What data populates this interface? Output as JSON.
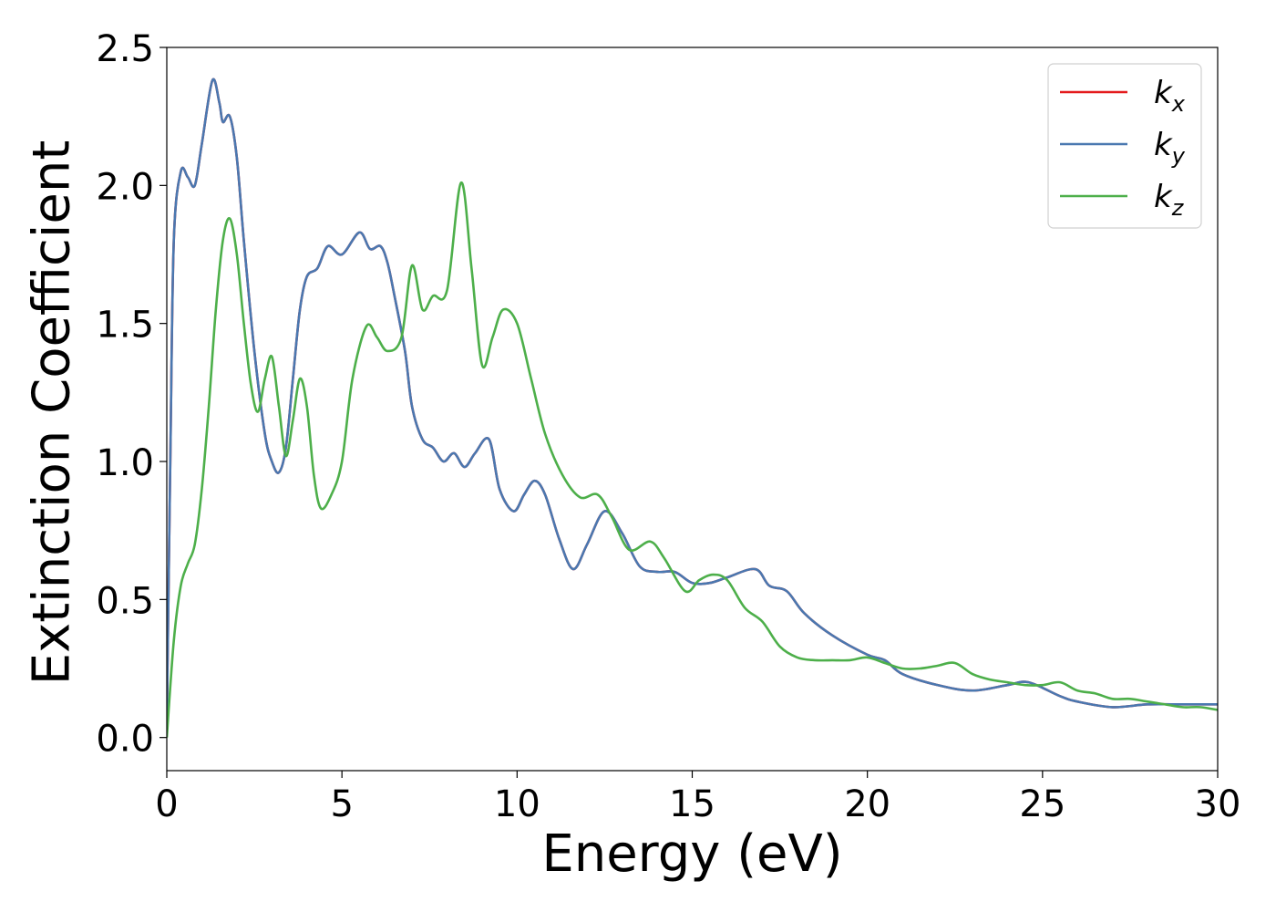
{
  "chart_data": {
    "type": "line",
    "xlabel": "Energy (eV)",
    "ylabel": "Extinction Coefficient",
    "xlim": [
      0,
      30
    ],
    "ylim": [
      -0.12,
      2.5
    ],
    "x_ticks": [
      0,
      5,
      10,
      15,
      20,
      25,
      30
    ],
    "x_tick_labels": [
      "0",
      "5",
      "10",
      "15",
      "20",
      "25",
      "30"
    ],
    "y_ticks": [
      0.0,
      0.5,
      1.0,
      1.5,
      2.0,
      2.5
    ],
    "y_tick_labels": [
      "0.0",
      "0.5",
      "1.0",
      "1.5",
      "2.0",
      "2.5"
    ],
    "grid": false,
    "legend_position": "top-right",
    "series": [
      {
        "name": "k_x",
        "legend_base": "k",
        "legend_sub": "x",
        "color": "#e41a1c",
        "points": [
          [
            0,
            0.05
          ],
          [
            0.1,
            1.0
          ],
          [
            0.2,
            1.8
          ],
          [
            0.4,
            2.05
          ],
          [
            0.6,
            2.03
          ],
          [
            0.8,
            2.0
          ],
          [
            1.0,
            2.15
          ],
          [
            1.3,
            2.38
          ],
          [
            1.5,
            2.3
          ],
          [
            1.6,
            2.23
          ],
          [
            1.8,
            2.25
          ],
          [
            2.0,
            2.1
          ],
          [
            2.2,
            1.8
          ],
          [
            2.5,
            1.4
          ],
          [
            2.8,
            1.1
          ],
          [
            3.0,
            1.0
          ],
          [
            3.2,
            0.96
          ],
          [
            3.4,
            1.05
          ],
          [
            3.6,
            1.3
          ],
          [
            3.8,
            1.55
          ],
          [
            4.0,
            1.67
          ],
          [
            4.3,
            1.7
          ],
          [
            4.6,
            1.78
          ],
          [
            5.0,
            1.75
          ],
          [
            5.5,
            1.83
          ],
          [
            5.8,
            1.77
          ],
          [
            6.1,
            1.78
          ],
          [
            6.3,
            1.72
          ],
          [
            6.5,
            1.6
          ],
          [
            6.8,
            1.4
          ],
          [
            7.0,
            1.2
          ],
          [
            7.3,
            1.08
          ],
          [
            7.6,
            1.05
          ],
          [
            7.9,
            1.0
          ],
          [
            8.2,
            1.03
          ],
          [
            8.5,
            0.98
          ],
          [
            8.8,
            1.03
          ],
          [
            9.2,
            1.08
          ],
          [
            9.5,
            0.9
          ],
          [
            9.9,
            0.82
          ],
          [
            10.2,
            0.88
          ],
          [
            10.5,
            0.93
          ],
          [
            10.8,
            0.88
          ],
          [
            11.2,
            0.72
          ],
          [
            11.6,
            0.61
          ],
          [
            12.0,
            0.7
          ],
          [
            12.5,
            0.82
          ],
          [
            13.0,
            0.74
          ],
          [
            13.5,
            0.62
          ],
          [
            14.0,
            0.6
          ],
          [
            14.5,
            0.6
          ],
          [
            15.0,
            0.56
          ],
          [
            15.5,
            0.56
          ],
          [
            16.0,
            0.58
          ],
          [
            16.8,
            0.61
          ],
          [
            17.2,
            0.55
          ],
          [
            17.7,
            0.53
          ],
          [
            18.2,
            0.45
          ],
          [
            19.0,
            0.37
          ],
          [
            20.0,
            0.3
          ],
          [
            20.5,
            0.28
          ],
          [
            21.0,
            0.23
          ],
          [
            22.0,
            0.19
          ],
          [
            23.0,
            0.17
          ],
          [
            24.0,
            0.19
          ],
          [
            24.6,
            0.2
          ],
          [
            25.5,
            0.15
          ],
          [
            26.0,
            0.13
          ],
          [
            27.0,
            0.11
          ],
          [
            28.0,
            0.12
          ],
          [
            29.0,
            0.12
          ],
          [
            30.0,
            0.12
          ]
        ]
      },
      {
        "name": "k_y",
        "legend_base": "k",
        "legend_sub": "y",
        "color": "#4a78b0",
        "points": [
          [
            0,
            0.05
          ],
          [
            0.1,
            1.0
          ],
          [
            0.2,
            1.8
          ],
          [
            0.4,
            2.05
          ],
          [
            0.6,
            2.03
          ],
          [
            0.8,
            2.0
          ],
          [
            1.0,
            2.15
          ],
          [
            1.3,
            2.38
          ],
          [
            1.5,
            2.3
          ],
          [
            1.6,
            2.23
          ],
          [
            1.8,
            2.25
          ],
          [
            2.0,
            2.1
          ],
          [
            2.2,
            1.8
          ],
          [
            2.5,
            1.4
          ],
          [
            2.8,
            1.1
          ],
          [
            3.0,
            1.0
          ],
          [
            3.2,
            0.96
          ],
          [
            3.4,
            1.05
          ],
          [
            3.6,
            1.3
          ],
          [
            3.8,
            1.55
          ],
          [
            4.0,
            1.67
          ],
          [
            4.3,
            1.7
          ],
          [
            4.6,
            1.78
          ],
          [
            5.0,
            1.75
          ],
          [
            5.5,
            1.83
          ],
          [
            5.8,
            1.77
          ],
          [
            6.1,
            1.78
          ],
          [
            6.3,
            1.72
          ],
          [
            6.5,
            1.6
          ],
          [
            6.8,
            1.4
          ],
          [
            7.0,
            1.2
          ],
          [
            7.3,
            1.08
          ],
          [
            7.6,
            1.05
          ],
          [
            7.9,
            1.0
          ],
          [
            8.2,
            1.03
          ],
          [
            8.5,
            0.98
          ],
          [
            8.8,
            1.03
          ],
          [
            9.2,
            1.08
          ],
          [
            9.5,
            0.9
          ],
          [
            9.9,
            0.82
          ],
          [
            10.2,
            0.88
          ],
          [
            10.5,
            0.93
          ],
          [
            10.8,
            0.88
          ],
          [
            11.2,
            0.72
          ],
          [
            11.6,
            0.61
          ],
          [
            12.0,
            0.7
          ],
          [
            12.5,
            0.82
          ],
          [
            13.0,
            0.74
          ],
          [
            13.5,
            0.62
          ],
          [
            14.0,
            0.6
          ],
          [
            14.5,
            0.6
          ],
          [
            15.0,
            0.56
          ],
          [
            15.5,
            0.56
          ],
          [
            16.0,
            0.58
          ],
          [
            16.8,
            0.61
          ],
          [
            17.2,
            0.55
          ],
          [
            17.7,
            0.53
          ],
          [
            18.2,
            0.45
          ],
          [
            19.0,
            0.37
          ],
          [
            20.0,
            0.3
          ],
          [
            20.5,
            0.28
          ],
          [
            21.0,
            0.23
          ],
          [
            22.0,
            0.19
          ],
          [
            23.0,
            0.17
          ],
          [
            24.0,
            0.19
          ],
          [
            24.6,
            0.2
          ],
          [
            25.5,
            0.15
          ],
          [
            26.0,
            0.13
          ],
          [
            27.0,
            0.11
          ],
          [
            28.0,
            0.12
          ],
          [
            29.0,
            0.12
          ],
          [
            30.0,
            0.12
          ]
        ]
      },
      {
        "name": "k_z",
        "legend_base": "k",
        "legend_sub": "z",
        "color": "#4daf4a",
        "points": [
          [
            0,
            0.0
          ],
          [
            0.2,
            0.35
          ],
          [
            0.4,
            0.55
          ],
          [
            0.6,
            0.63
          ],
          [
            0.8,
            0.7
          ],
          [
            1.0,
            0.9
          ],
          [
            1.2,
            1.2
          ],
          [
            1.4,
            1.55
          ],
          [
            1.6,
            1.8
          ],
          [
            1.8,
            1.88
          ],
          [
            2.0,
            1.75
          ],
          [
            2.2,
            1.5
          ],
          [
            2.4,
            1.28
          ],
          [
            2.6,
            1.18
          ],
          [
            2.8,
            1.3
          ],
          [
            3.0,
            1.38
          ],
          [
            3.2,
            1.2
          ],
          [
            3.4,
            1.02
          ],
          [
            3.6,
            1.15
          ],
          [
            3.8,
            1.3
          ],
          [
            4.0,
            1.2
          ],
          [
            4.2,
            0.95
          ],
          [
            4.4,
            0.83
          ],
          [
            4.7,
            0.88
          ],
          [
            5.0,
            1.0
          ],
          [
            5.3,
            1.3
          ],
          [
            5.7,
            1.49
          ],
          [
            6.0,
            1.45
          ],
          [
            6.3,
            1.4
          ],
          [
            6.7,
            1.45
          ],
          [
            7.0,
            1.71
          ],
          [
            7.3,
            1.55
          ],
          [
            7.6,
            1.6
          ],
          [
            8.0,
            1.62
          ],
          [
            8.4,
            2.01
          ],
          [
            8.7,
            1.7
          ],
          [
            9.0,
            1.35
          ],
          [
            9.3,
            1.45
          ],
          [
            9.6,
            1.55
          ],
          [
            10.0,
            1.5
          ],
          [
            10.4,
            1.3
          ],
          [
            10.8,
            1.1
          ],
          [
            11.3,
            0.95
          ],
          [
            11.8,
            0.87
          ],
          [
            12.3,
            0.88
          ],
          [
            12.7,
            0.8
          ],
          [
            13.2,
            0.68
          ],
          [
            13.8,
            0.71
          ],
          [
            14.2,
            0.65
          ],
          [
            14.8,
            0.53
          ],
          [
            15.2,
            0.57
          ],
          [
            15.6,
            0.59
          ],
          [
            16.0,
            0.57
          ],
          [
            16.5,
            0.47
          ],
          [
            17.0,
            0.42
          ],
          [
            17.5,
            0.33
          ],
          [
            18.0,
            0.29
          ],
          [
            18.5,
            0.28
          ],
          [
            19.0,
            0.28
          ],
          [
            19.5,
            0.28
          ],
          [
            20.0,
            0.29
          ],
          [
            20.5,
            0.27
          ],
          [
            21.0,
            0.25
          ],
          [
            21.5,
            0.25
          ],
          [
            22.0,
            0.26
          ],
          [
            22.5,
            0.27
          ],
          [
            23.0,
            0.23
          ],
          [
            23.5,
            0.21
          ],
          [
            24.0,
            0.2
          ],
          [
            24.5,
            0.19
          ],
          [
            25.0,
            0.19
          ],
          [
            25.5,
            0.2
          ],
          [
            26.0,
            0.17
          ],
          [
            26.5,
            0.16
          ],
          [
            27.0,
            0.14
          ],
          [
            27.5,
            0.14
          ],
          [
            28.0,
            0.13
          ],
          [
            28.5,
            0.12
          ],
          [
            29.0,
            0.11
          ],
          [
            29.5,
            0.11
          ],
          [
            30.0,
            0.1
          ]
        ]
      }
    ]
  }
}
